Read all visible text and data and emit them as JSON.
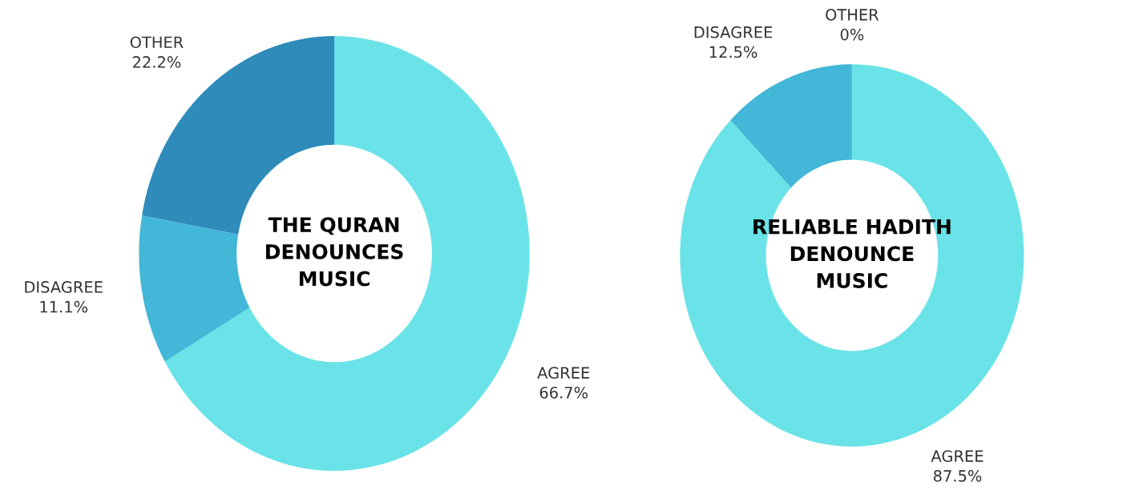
{
  "chart_data": [
    {
      "type": "donut",
      "title": "THE QURAN\nDENOUNCES\nMUSIC",
      "categories": [
        "AGREE",
        "DISAGREE",
        "OTHER"
      ],
      "values": [
        66.7,
        11.1,
        22.2
      ],
      "value_labels": [
        "66.7%",
        "11.1%",
        "22.2%"
      ],
      "colors": [
        "#6ae3e8",
        "#43b7d7",
        "#2e8bba"
      ],
      "legend": false
    },
    {
      "type": "donut",
      "title": "RELIABLE HADITH\nDENOUNCE\nMUSIC",
      "categories": [
        "AGREE",
        "DISAGREE",
        "OTHER"
      ],
      "values": [
        87.5,
        12.5,
        0
      ],
      "value_labels": [
        "87.5%",
        "12.5%",
        "0%"
      ],
      "colors": [
        "#6ae3e8",
        "#43b7d7",
        "#2e8bba"
      ],
      "legend": false
    }
  ]
}
